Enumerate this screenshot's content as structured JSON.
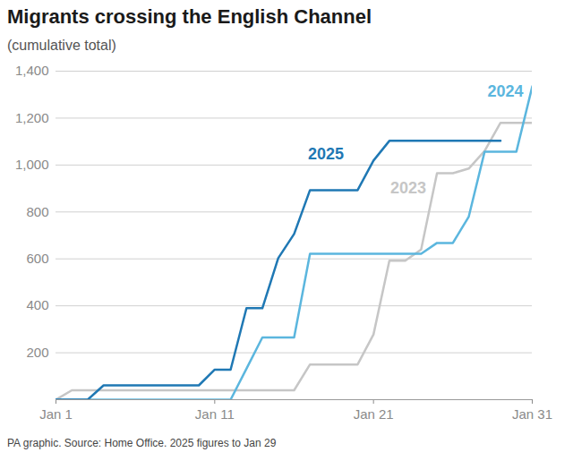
{
  "chart_data": {
    "type": "line",
    "title": "Migrants crossing the English Channel",
    "subtitle": "(cumulative total)",
    "caption": "PA graphic. Source: Home Office. 2025 figures to Jan 29",
    "x": [
      1,
      2,
      3,
      4,
      5,
      6,
      7,
      8,
      9,
      10,
      11,
      12,
      13,
      14,
      15,
      16,
      17,
      18,
      19,
      20,
      21,
      22,
      23,
      24,
      25,
      26,
      27,
      28,
      29,
      30,
      31
    ],
    "xlim": [
      1,
      31
    ],
    "xticks": [
      {
        "value": 1,
        "label": "Jan 1"
      },
      {
        "value": 11,
        "label": "Jan 11"
      },
      {
        "value": 21,
        "label": "Jan 21"
      },
      {
        "value": 31,
        "label": "Jan 31"
      }
    ],
    "ylim": [
      0,
      1400
    ],
    "yticks": [
      200,
      400,
      600,
      800,
      {
        "value": 1000,
        "label": "1,000"
      },
      {
        "value": 1200,
        "label": "1,200"
      },
      {
        "value": 1400,
        "label": "1,400"
      }
    ],
    "grid": true,
    "series": [
      {
        "name": "2025",
        "color": "#1f78b4",
        "values": [
          0,
          0,
          0,
          61,
          61,
          61,
          61,
          61,
          61,
          61,
          128,
          128,
          390,
          390,
          603,
          706,
          893,
          893,
          893,
          893,
          1019,
          1103,
          1103,
          1103,
          1103,
          1103,
          1103,
          1103,
          1103,
          null,
          null
        ]
      },
      {
        "name": "2024",
        "color": "#5bb6de",
        "values": [
          0,
          0,
          0,
          0,
          0,
          0,
          0,
          0,
          0,
          0,
          0,
          0,
          132,
          265,
          265,
          265,
          622,
          622,
          622,
          622,
          622,
          622,
          622,
          622,
          668,
          668,
          780,
          1057,
          1057,
          1057,
          1335
        ]
      },
      {
        "name": "2023",
        "color": "#c6c6c6",
        "values": [
          0,
          40,
          40,
          40,
          40,
          40,
          40,
          40,
          40,
          40,
          40,
          40,
          40,
          40,
          40,
          40,
          150,
          150,
          150,
          150,
          278,
          592,
          592,
          640,
          965,
          965,
          985,
          1060,
          1180,
          1180,
          1180
        ]
      }
    ]
  }
}
